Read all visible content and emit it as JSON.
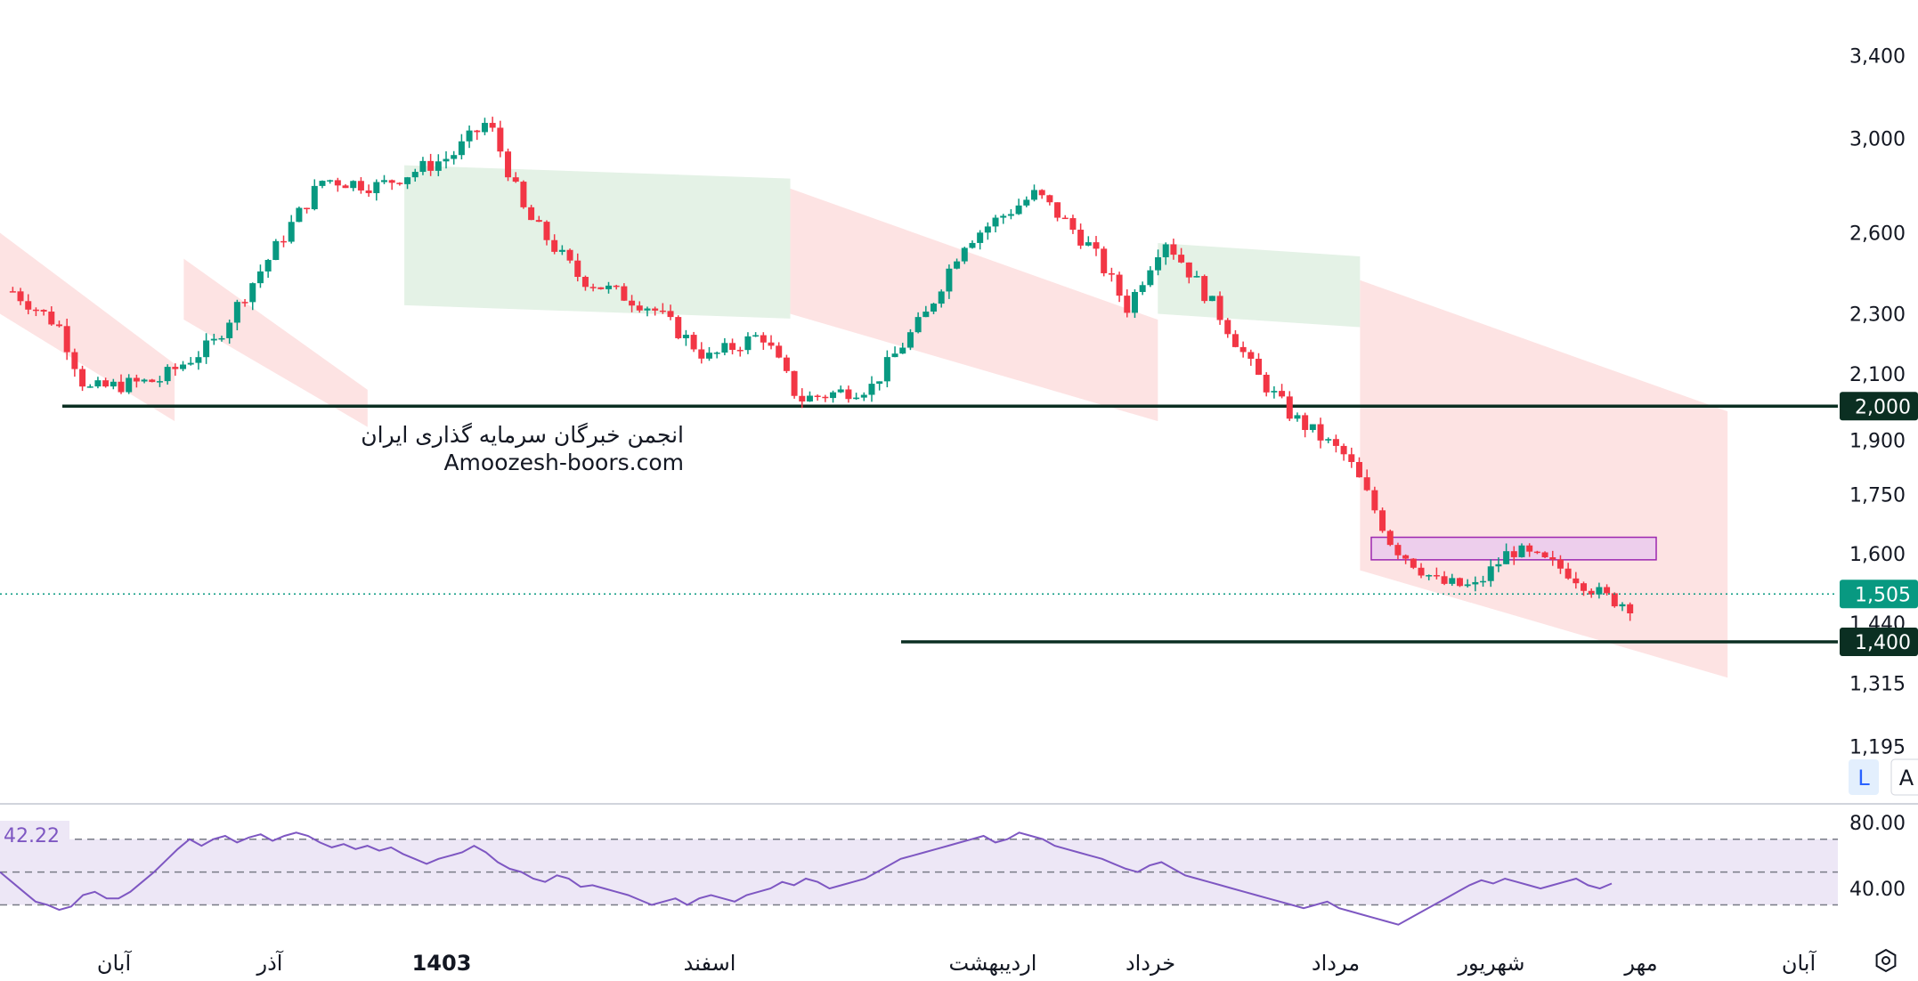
{
  "chart_data": {
    "type": "candlestick",
    "price_axis": {
      "ticks": [
        "3,400",
        "3,000",
        "2,600",
        "2,300",
        "2,100",
        "1,900",
        "1,750",
        "1,600",
        "1,440",
        "1,315",
        "1,195"
      ],
      "scale": "log",
      "range": [
        1130,
        3600
      ]
    },
    "time_axis": {
      "labels": [
        "آبان",
        "آذر",
        "1403",
        "اسفند",
        "اردیبهشت",
        "خرداد",
        "مرداد",
        "شهریور",
        "مهر",
        "آبان"
      ],
      "bold": [
        false,
        false,
        true,
        false,
        false,
        false,
        false,
        false,
        false,
        false
      ]
    },
    "current_price": {
      "label": "1,505",
      "value": 1505,
      "color": "#089981"
    },
    "horizontal_levels": [
      {
        "label": "2,000",
        "value": 2000,
        "color": "#0b2f22"
      },
      {
        "label": "1,400",
        "value": 1400,
        "color": "#0b2f22"
      }
    ],
    "zone": {
      "from": 1585,
      "to": 1640,
      "fill": "#e8c8ee",
      "stroke": "#9c27b0"
    },
    "ichimoku_cloud": {
      "bullish_color": "#e4f2e6",
      "bearish_color": "#fde3e3"
    },
    "candles": [],
    "candle_colors": {
      "up": "#089981",
      "down": "#f23645"
    },
    "rsi": {
      "value_label": "42.22",
      "ticks": [
        "80.00",
        "40.00"
      ],
      "upper_band": 70,
      "lower_band": 30,
      "color": "#7e57c2",
      "values": [
        50,
        44,
        38,
        32,
        30,
        27,
        29,
        36,
        38,
        34,
        34,
        38,
        44,
        50,
        57,
        64,
        70,
        66,
        70,
        72,
        68,
        71,
        73,
        69,
        72,
        74,
        72,
        68,
        65,
        67,
        64,
        66,
        63,
        65,
        61,
        58,
        55,
        58,
        60,
        62,
        66,
        62,
        56,
        52,
        50,
        46,
        44,
        48,
        46,
        41,
        42,
        40,
        38,
        36,
        33,
        30,
        32,
        34,
        30,
        34,
        36,
        34,
        32,
        36,
        38,
        40,
        44,
        42,
        46,
        44,
        40,
        42,
        44,
        46,
        50,
        54,
        58,
        60,
        62,
        64,
        66,
        68,
        70,
        72,
        68,
        70,
        74,
        72,
        70,
        66,
        64,
        62,
        60,
        58,
        55,
        52,
        50,
        54,
        56,
        52,
        48,
        46,
        44,
        42,
        40,
        38,
        36,
        34,
        32,
        30,
        28,
        30,
        32,
        28,
        26,
        24,
        22,
        20,
        18,
        22,
        26,
        30,
        34,
        38,
        42,
        45,
        43,
        46,
        44,
        42,
        40,
        42,
        44,
        46,
        42,
        40,
        43
      ]
    },
    "title": "",
    "xlabel": "",
    "ylabel": ""
  },
  "watermark": {
    "line1": "انجمن خبرگان سرمایه گذاری ایران",
    "line2": "Amoozesh-boors.com"
  },
  "scale_buttons": {
    "log": "L",
    "auto": "A"
  },
  "icons": {
    "settings": "hexagon-settings-icon"
  }
}
